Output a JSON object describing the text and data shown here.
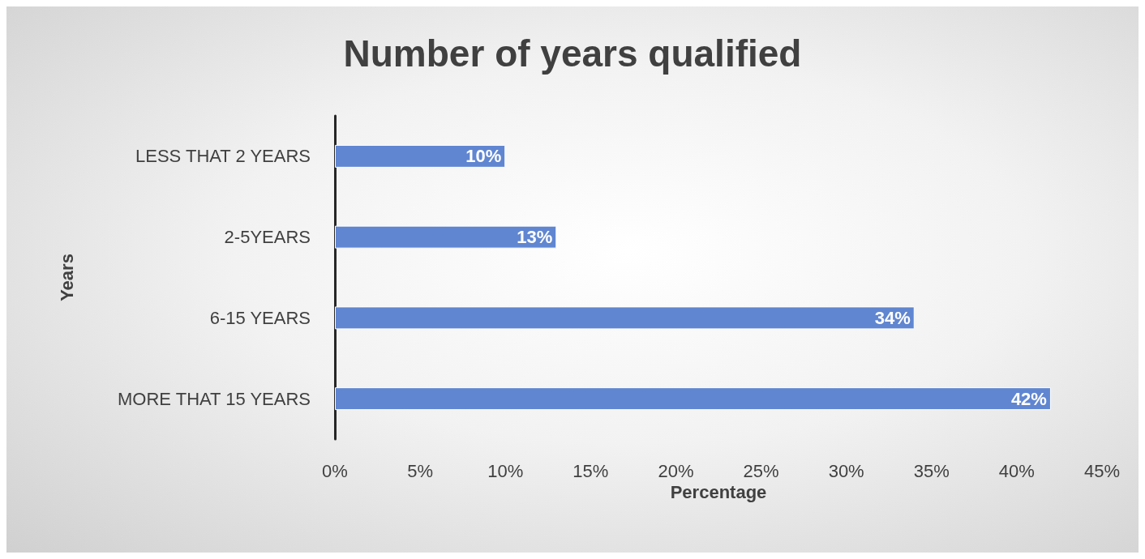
{
  "chart_data": {
    "type": "bar",
    "orientation": "horizontal",
    "title": "Number of years qualified",
    "xlabel": "Percentage",
    "ylabel": "Years",
    "categories": [
      "LESS THAT 2 YEARS",
      "2-5YEARS",
      "6-15 YEARS",
      "MORE THAT 15 YEARS"
    ],
    "values": [
      10,
      13,
      34,
      42
    ],
    "value_labels": [
      "10%",
      "13%",
      "34%",
      "42%"
    ],
    "color": "#6086d1",
    "xlim": [
      0,
      45
    ],
    "xticks": [
      {
        "value": 0,
        "label": "0%"
      },
      {
        "value": 5,
        "label": "5%"
      },
      {
        "value": 10,
        "label": "10%"
      },
      {
        "value": 15,
        "label": "15%"
      },
      {
        "value": 20,
        "label": "20%"
      },
      {
        "value": 25,
        "label": "25%"
      },
      {
        "value": 30,
        "label": "30%"
      },
      {
        "value": 35,
        "label": "35%"
      },
      {
        "value": 40,
        "label": "40%"
      },
      {
        "value": 45,
        "label": "45%"
      }
    ],
    "grid": false
  }
}
